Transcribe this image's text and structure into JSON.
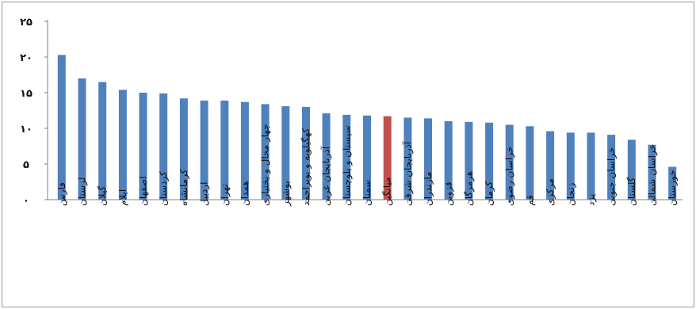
{
  "chart_data": {
    "type": "bar",
    "title": "",
    "xlabel": "",
    "ylabel": "",
    "ylim": [
      0,
      25
    ],
    "y_ticks": [
      "۰",
      "۵",
      "۱۰",
      "۱۵",
      "۲۰",
      "۲۵"
    ],
    "grid": false,
    "categories": [
      "فارس",
      "لرستان",
      "گیلان",
      "ایلام",
      "اصفهان",
      "کردستان",
      "کرمانشاه",
      "اردبیل",
      "تهران",
      "همدان",
      "چهار محال و بختیاری",
      "بوشهر",
      "کهگیلویه و بویراحمد",
      "آذربایجان غربی",
      "سیستان و بلوچستان",
      "سمنان",
      "میانگین",
      "آذربایجان شرقی",
      "مازندران",
      "قزوین",
      "هرمزگان",
      "کرمان",
      "خراسان رضوی",
      "قم",
      "مرکزی",
      "زنجان",
      "یزد",
      "خراسان جنوبی",
      "گلستان",
      "خراسان شمالی",
      "خوزستان"
    ],
    "values": [
      20.3,
      17.0,
      16.5,
      15.4,
      15.0,
      14.9,
      14.2,
      13.9,
      13.9,
      13.7,
      13.4,
      13.1,
      13.0,
      12.1,
      11.9,
      11.8,
      11.7,
      11.5,
      11.4,
      11.0,
      10.9,
      10.8,
      10.5,
      10.3,
      9.6,
      9.4,
      9.4,
      9.1,
      8.4,
      7.7,
      4.6
    ],
    "colors": {
      "default": "#4f81bd",
      "highlight": "#c0504d",
      "highlight_category": "میانگین"
    }
  }
}
